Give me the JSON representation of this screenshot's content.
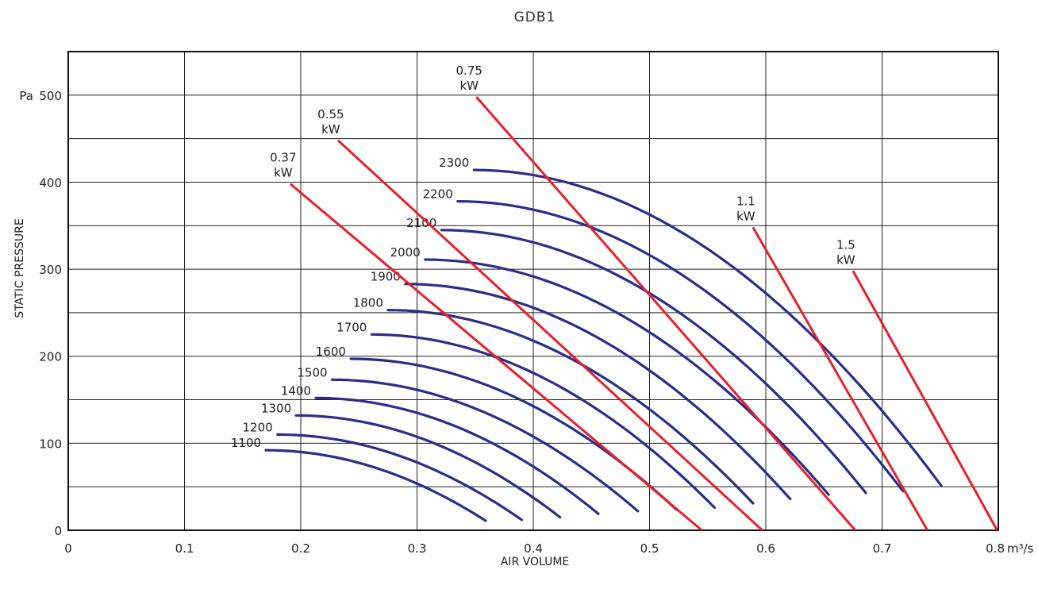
{
  "chart_data": {
    "type": "line",
    "title": "GDB1",
    "xlabel": "AIR VOLUME",
    "ylabel": "STATIC PRESSURE",
    "x_unit": "m³/s",
    "y_unit": "Pa",
    "xlim": [
      0,
      0.8
    ],
    "ylim": [
      0,
      550
    ],
    "x_ticks": [
      "0",
      "0.1",
      "0.2",
      "0.3",
      "0.4",
      "0.5",
      "0.6",
      "0.7",
      "0.8"
    ],
    "y_ticks": [
      "0",
      "100",
      "200",
      "300",
      "400",
      "500"
    ],
    "y_tick_prefix_top": "Pa",
    "grid": true,
    "colors": {
      "speed_curves": "#2b2d8c",
      "power_lines": "#e8202a",
      "grid": "#222222"
    },
    "speed_curves": [
      {
        "name": "1100",
        "points": [
          [
            0.17,
            92
          ],
          [
            0.359,
            11
          ]
        ]
      },
      {
        "name": "1200",
        "points": [
          [
            0.18,
            110
          ],
          [
            0.39,
            12
          ]
        ]
      },
      {
        "name": "1300",
        "points": [
          [
            0.196,
            132
          ],
          [
            0.423,
            15
          ]
        ]
      },
      {
        "name": "1400",
        "points": [
          [
            0.213,
            152
          ],
          [
            0.456,
            19
          ]
        ]
      },
      {
        "name": "1500",
        "points": [
          [
            0.227,
            173
          ],
          [
            0.49,
            22
          ]
        ]
      },
      {
        "name": "1600",
        "points": [
          [
            0.243,
            197
          ],
          [
            0.523,
            24
          ]
        ]
      },
      {
        "name": "1700",
        "points": [
          [
            0.261,
            225
          ],
          [
            0.556,
            26
          ]
        ]
      },
      {
        "name": "1800",
        "points": [
          [
            0.275,
            253
          ],
          [
            0.589,
            31
          ]
        ]
      },
      {
        "name": "1900",
        "points": [
          [
            0.29,
            283
          ],
          [
            0.621,
            36
          ]
        ]
      },
      {
        "name": "2000",
        "points": [
          [
            0.307,
            311
          ],
          [
            0.654,
            41
          ]
        ]
      },
      {
        "name": "2100",
        "points": [
          [
            0.321,
            345
          ],
          [
            0.686,
            43
          ]
        ]
      },
      {
        "name": "2200",
        "points": [
          [
            0.335,
            378
          ],
          [
            0.718,
            45
          ]
        ]
      },
      {
        "name": "2300",
        "points": [
          [
            0.349,
            414
          ],
          [
            0.751,
            51
          ]
        ]
      }
    ],
    "power_lines": [
      {
        "name": "0.37",
        "unit": "kW",
        "points": [
          [
            0.191,
            398
          ],
          [
            0.545,
            0
          ]
        ]
      },
      {
        "name": "0.55",
        "unit": "kW",
        "points": [
          [
            0.232,
            448
          ],
          [
            0.597,
            0
          ]
        ]
      },
      {
        "name": "0.75",
        "unit": "kW",
        "points": [
          [
            0.351,
            498
          ],
          [
            0.677,
            0
          ]
        ]
      },
      {
        "name": "1.1",
        "unit": "kW",
        "points": [
          [
            0.589,
            348
          ],
          [
            0.739,
            0
          ]
        ]
      },
      {
        "name": "1.5",
        "unit": "kW",
        "points": [
          [
            0.675,
            298
          ],
          [
            0.799,
            0
          ]
        ]
      }
    ]
  }
}
